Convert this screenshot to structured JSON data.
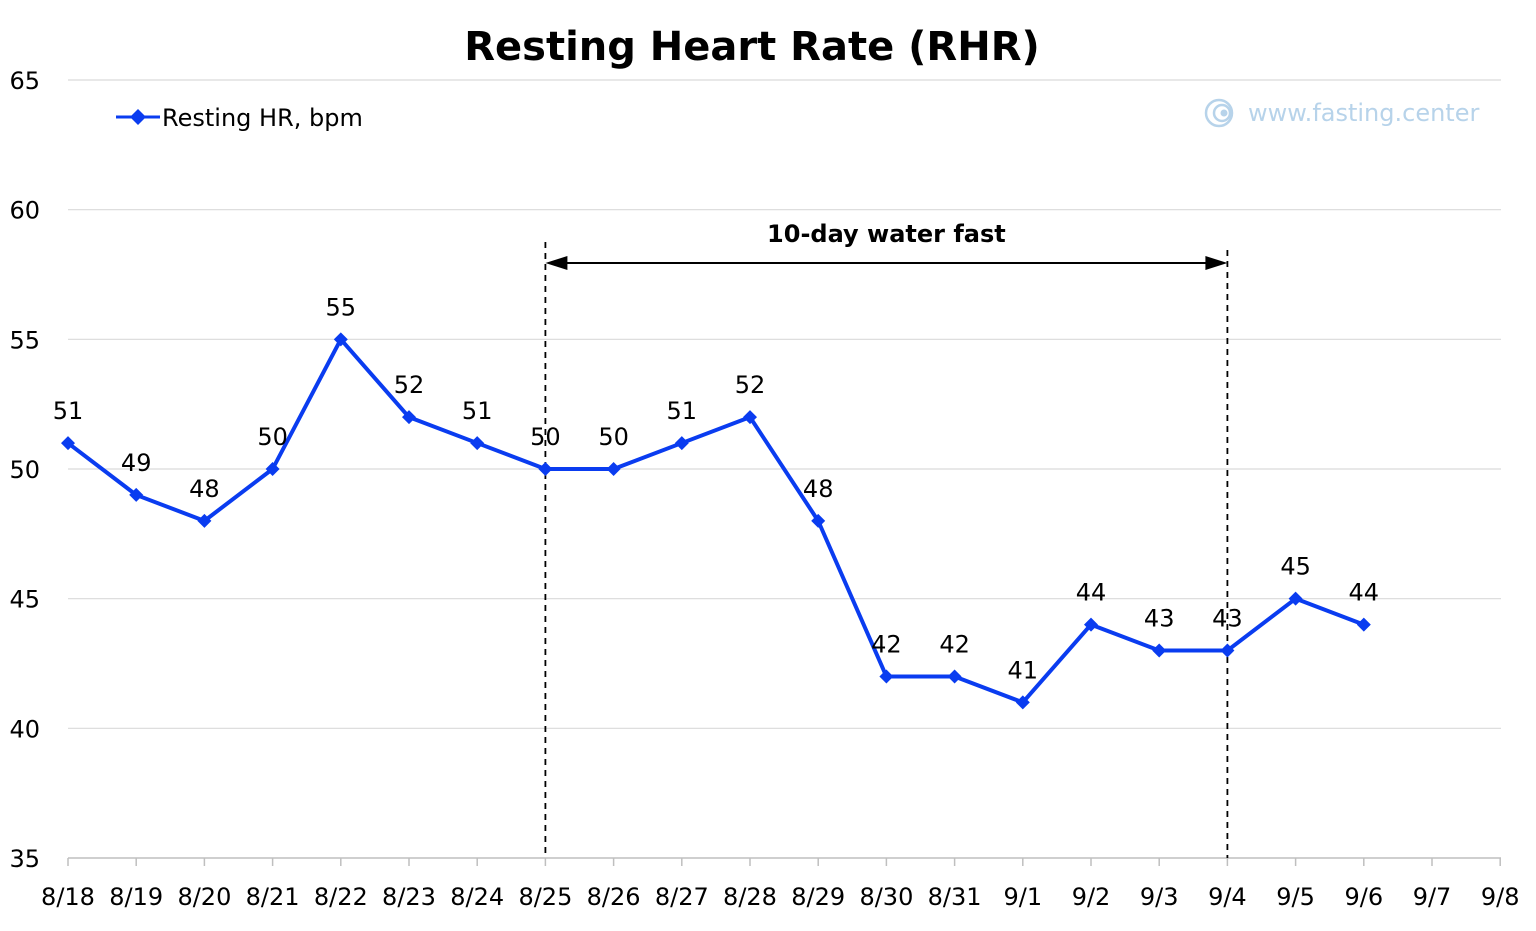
{
  "colors": {
    "series": "#0a3cf0",
    "grid": "#d9d9d9",
    "axis": "#bfbfbf",
    "watermark": "#b7d3ea"
  },
  "icons": {
    "watermark": "fasting-center-logo-icon",
    "legend_marker": "diamond-marker-icon"
  },
  "watermark_text": "www.fasting.center",
  "annotation": {
    "text": "10-day water fast",
    "start": "8/25",
    "end": "9/4",
    "style": "double-arrow between dashed verticals"
  },
  "chart_data": {
    "type": "line",
    "title": "Resting Heart Rate (RHR)",
    "xlabel": "",
    "ylabel": "",
    "categories": [
      "8/18",
      "8/19",
      "8/20",
      "8/21",
      "8/22",
      "8/23",
      "8/24",
      "8/25",
      "8/26",
      "8/27",
      "8/28",
      "8/29",
      "8/30",
      "8/31",
      "9/1",
      "9/2",
      "9/3",
      "9/4",
      "9/5",
      "9/6",
      "9/7",
      "9/8"
    ],
    "series": [
      {
        "name": "Resting HR, bpm",
        "marker": "diamond",
        "values": [
          51,
          49,
          48,
          50,
          55,
          52,
          51,
          50,
          50,
          51,
          52,
          48,
          42,
          42,
          41,
          44,
          43,
          43,
          45,
          44,
          null,
          null
        ]
      }
    ],
    "ylim": [
      35,
      65
    ],
    "yticks": [
      35,
      40,
      45,
      50,
      55,
      60,
      65
    ],
    "grid": "horizontal",
    "legend_position": "top-left",
    "data_labels": true
  }
}
